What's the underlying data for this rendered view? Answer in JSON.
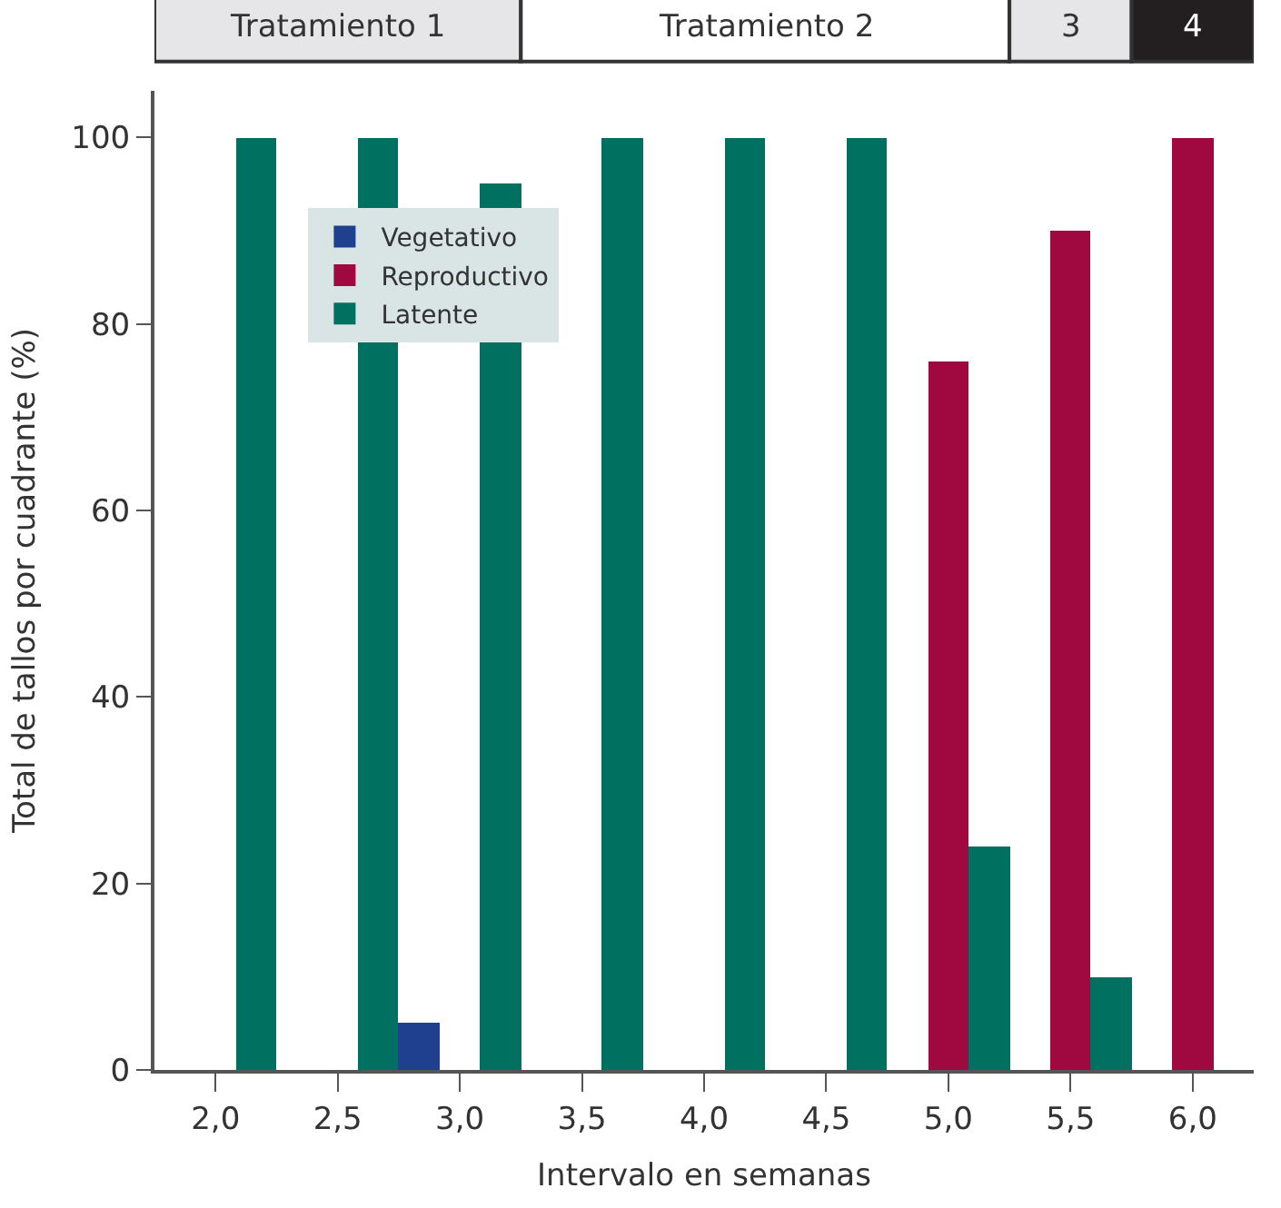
{
  "chart_data": {
    "type": "bar",
    "xlabel": "Intervalo en semanas",
    "ylabel": "Total de tallos por cuadrante (%)",
    "categories": [
      "2,0",
      "2,5",
      "3,0",
      "3,5",
      "4,0",
      "4,5",
      "5,0",
      "5,5",
      "6,0"
    ],
    "series": [
      {
        "name": "Vegetativo",
        "color": "#1f3f8f",
        "values": [
          null,
          null,
          5,
          null,
          null,
          null,
          null,
          null,
          null
        ]
      },
      {
        "name": "Reproductivo",
        "color": "#a0093f",
        "values": [
          null,
          null,
          null,
          null,
          null,
          null,
          76,
          90,
          100
        ]
      },
      {
        "name": "Latente",
        "color": "#007060",
        "values": [
          100,
          100,
          95,
          100,
          100,
          100,
          24,
          10,
          null
        ]
      }
    ],
    "ylim": [
      0,
      105
    ],
    "yticks": [
      0,
      20,
      40,
      60,
      80,
      100
    ],
    "legend": "top left",
    "annotations": [
      "Tratamiento 1",
      "Tratamiento 2",
      "3",
      "4"
    ]
  }
}
